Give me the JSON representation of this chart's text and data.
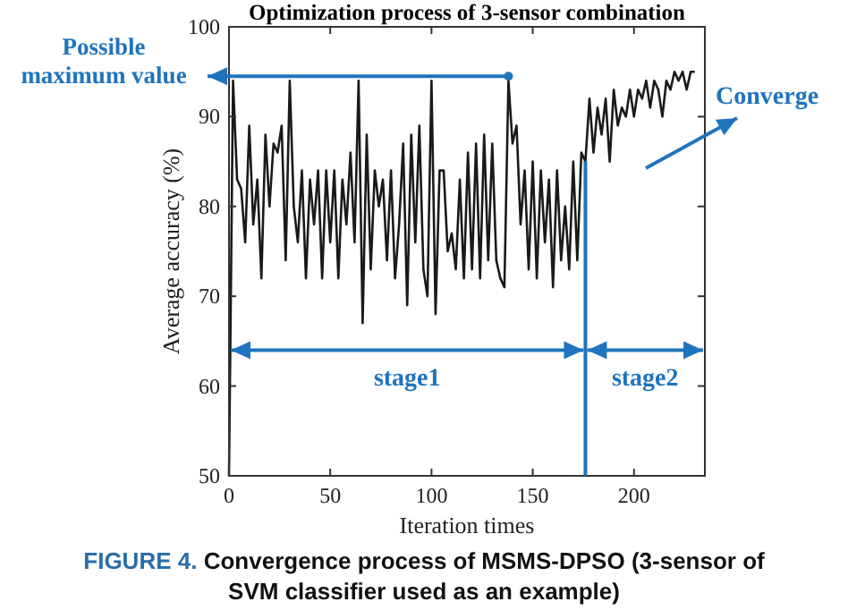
{
  "chart_data": {
    "type": "line",
    "title": "Optimization process of 3-sensor combination",
    "xlabel": "Iteration times",
    "ylabel": "Average accuracy (%)",
    "xlim": [
      0,
      235
    ],
    "ylim": [
      50,
      100
    ],
    "xticks": [
      0,
      50,
      100,
      150,
      200
    ],
    "yticks": [
      50,
      60,
      70,
      80,
      90,
      100
    ],
    "grid": false,
    "marker": "none",
    "line_style": "solid",
    "series": [
      {
        "color": "#1a1a1a",
        "x": [
          0,
          2,
          4,
          6,
          8,
          10,
          12,
          14,
          16,
          18,
          20,
          22,
          24,
          26,
          28,
          30,
          32,
          34,
          36,
          38,
          40,
          42,
          44,
          46,
          48,
          50,
          52,
          54,
          56,
          58,
          60,
          62,
          64,
          66,
          68,
          70,
          72,
          74,
          76,
          78,
          80,
          82,
          84,
          86,
          88,
          90,
          92,
          94,
          96,
          98,
          100,
          102,
          104,
          106,
          108,
          110,
          112,
          114,
          116,
          118,
          120,
          122,
          124,
          126,
          128,
          130,
          132,
          134,
          136,
          138,
          140,
          142,
          144,
          146,
          148,
          150,
          152,
          154,
          156,
          158,
          160,
          162,
          164,
          166,
          168,
          170,
          172,
          174,
          176,
          178,
          180,
          182,
          184,
          186,
          188,
          190,
          192,
          194,
          196,
          198,
          200,
          202,
          204,
          206,
          208,
          210,
          212,
          214,
          216,
          218,
          220,
          222,
          224,
          226,
          228,
          230
        ],
        "values": [
          50,
          94,
          83,
          82,
          76,
          89,
          78,
          83,
          72,
          88,
          80,
          87,
          86,
          89,
          74,
          94,
          80,
          76,
          84,
          72,
          83,
          78,
          84,
          72,
          84,
          76,
          84,
          72,
          83,
          78,
          86,
          76,
          94,
          67,
          88,
          73,
          84,
          80,
          83,
          74,
          84,
          72,
          78,
          87,
          69,
          88,
          76,
          89,
          73,
          70,
          94,
          68,
          84,
          84,
          75,
          77,
          73,
          83,
          72,
          86,
          73,
          87,
          72,
          88,
          74,
          87,
          74,
          72,
          71,
          94,
          87,
          89,
          78,
          84,
          73,
          85,
          72,
          84,
          76,
          83,
          71,
          84,
          74,
          80,
          73,
          85,
          74,
          86,
          85,
          92,
          86,
          91,
          88,
          92,
          85,
          93,
          89,
          91,
          90,
          93,
          90,
          93,
          92,
          94,
          91,
          94,
          93,
          90,
          94,
          93,
          95,
          94,
          95,
          93,
          95,
          95
        ]
      }
    ],
    "ref_lines": [
      {
        "axis": "x",
        "value": 176,
        "color": "#1f74bd"
      }
    ],
    "annotations": [
      {
        "text": "Possible maximum value",
        "x": 138,
        "y": 94.5
      },
      "Converge",
      "stage1",
      "stage2",
      "FIGURE 4. Convergence process of MSMS-DPSO (3-sensor of SVM classifier used as an example)"
    ]
  }
}
